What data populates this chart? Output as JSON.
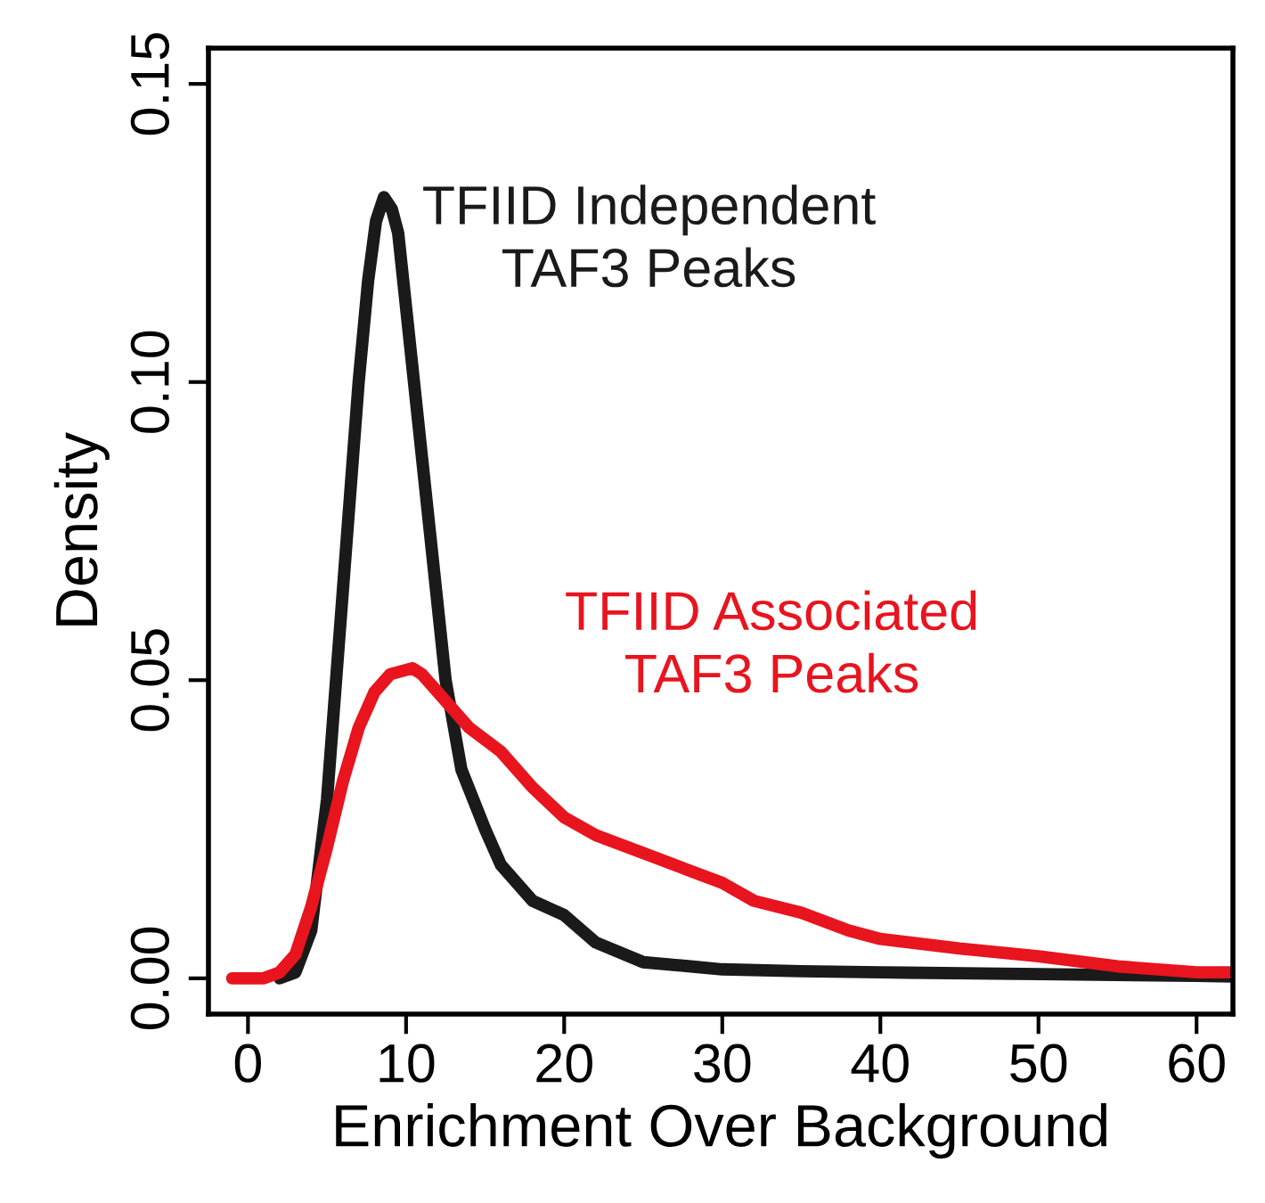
{
  "chart_data": {
    "type": "line",
    "xlabel": "Enrichment Over Background",
    "ylabel": "Density",
    "xlim": [
      -2.5,
      62.3
    ],
    "ylim": [
      -0.006,
      0.156
    ],
    "xticks": [
      0,
      10,
      20,
      30,
      40,
      50,
      60
    ],
    "yticks": [
      {
        "value": 0,
        "label": "0.00"
      },
      {
        "value": 0.05,
        "label": "0.05"
      },
      {
        "value": 0.1,
        "label": "0.10"
      },
      {
        "value": 0.15,
        "label": "0.15"
      }
    ],
    "grid": false,
    "legend": false,
    "marker": "none",
    "line_style": "solid",
    "series": [
      {
        "name": "TFIID Independent\nTAF3 Peaks",
        "color": "#1a1a1a",
        "x": [
          2,
          3,
          4,
          5,
          6,
          7,
          7.6,
          8.1,
          8.6,
          9.1,
          9.5,
          10.5,
          11.5,
          12.5,
          13.5,
          15,
          16,
          18,
          20,
          22,
          25,
          28,
          30,
          35,
          40,
          50,
          60,
          62.3
        ],
        "values": [
          0,
          0.001,
          0.008,
          0.03,
          0.065,
          0.1,
          0.117,
          0.127,
          0.131,
          0.129,
          0.125,
          0.1,
          0.075,
          0.05,
          0.035,
          0.025,
          0.019,
          0.013,
          0.0106,
          0.006,
          0.0027,
          0.002,
          0.0015,
          0.0012,
          0.001,
          0.0007,
          0.0004,
          0.0003
        ]
      },
      {
        "name": "TFIID Associated\nTAF3 Peaks",
        "color": "#e8141e",
        "x": [
          -1,
          1,
          2,
          3,
          4,
          5,
          6,
          7,
          8,
          9,
          10.4,
          11,
          12,
          13,
          14,
          16,
          18,
          20,
          22,
          25,
          28,
          30,
          32,
          35,
          38,
          40,
          45,
          50,
          55,
          60,
          62.3
        ],
        "values": [
          0,
          0,
          0.001,
          0.004,
          0.012,
          0.022,
          0.033,
          0.042,
          0.048,
          0.051,
          0.052,
          0.051,
          0.048,
          0.045,
          0.042,
          0.038,
          0.032,
          0.027,
          0.024,
          0.021,
          0.018,
          0.016,
          0.013,
          0.011,
          0.008,
          0.0066,
          0.005,
          0.0037,
          0.002,
          0.001,
          0.001
        ]
      }
    ]
  }
}
